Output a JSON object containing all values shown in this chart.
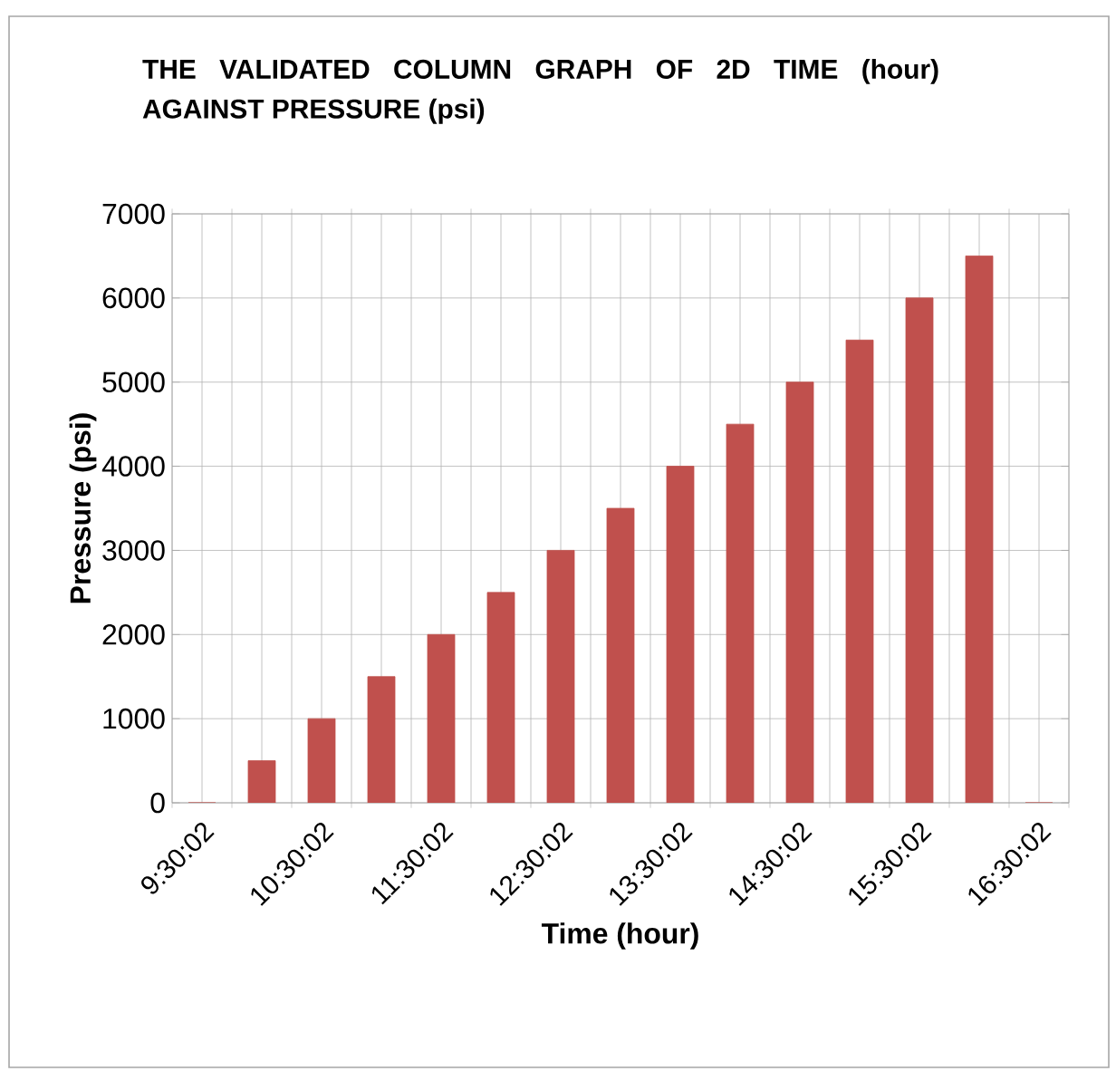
{
  "chart_data": {
    "type": "bar",
    "title": "THE VALIDATED COLUMN GRAPH OF 2D TIME (hour) AGAINST PRESSURE (psi)",
    "xlabel": "Time (hour)",
    "ylabel": "Pressure (psi)",
    "categories": [
      "9:30:02",
      null,
      "10:30:02",
      null,
      "11:30:02",
      null,
      "12:30:02",
      null,
      "13:30:02",
      null,
      "14:30:02",
      null,
      "15:30:02",
      null,
      "16:30:02"
    ],
    "values": [
      0,
      500,
      1000,
      1500,
      2000,
      2500,
      3000,
      3500,
      4000,
      4500,
      5000,
      5500,
      6000,
      6500,
      0
    ],
    "color": "#c0504d",
    "ylim": [
      0,
      7000
    ],
    "yticks": [
      0,
      1000,
      2000,
      3000,
      4000,
      5000,
      6000,
      7000
    ],
    "grid": true
  }
}
